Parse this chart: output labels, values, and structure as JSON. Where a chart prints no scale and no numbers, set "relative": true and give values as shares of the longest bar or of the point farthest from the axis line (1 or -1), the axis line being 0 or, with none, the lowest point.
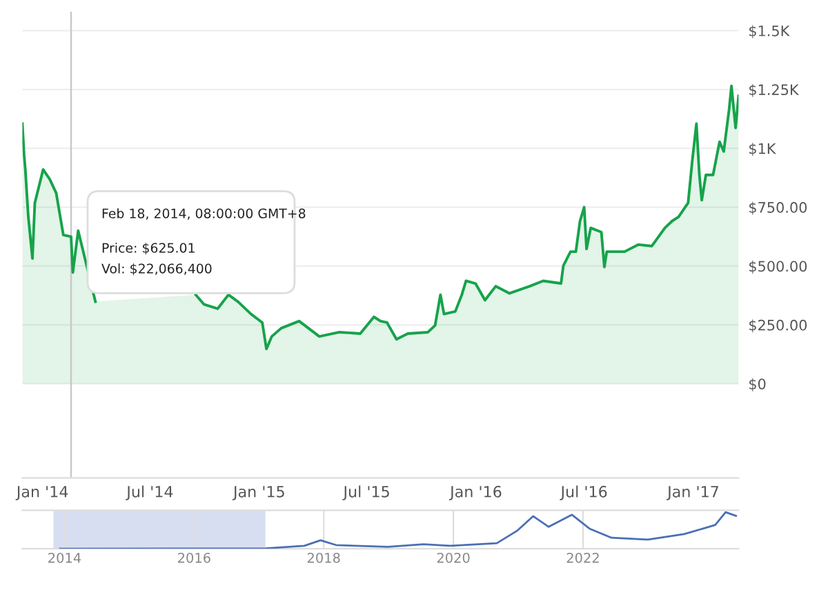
{
  "chart_data": [
    {
      "type": "area",
      "x": [
        "2013-11-28",
        "2013-12-01",
        "2013-12-03",
        "2013-12-08",
        "2013-12-15",
        "2013-12-19",
        "2014-01-02",
        "2014-01-13",
        "2014-01-24",
        "2014-02-05",
        "2014-02-18",
        "2014-02-21",
        "2014-03-02",
        "2014-03-31",
        "2014-04-15",
        "2014-09-16",
        "2014-09-30",
        "2014-10-23",
        "2014-11-10",
        "2014-11-26",
        "2014-12-18",
        "2015-01-06",
        "2015-01-13",
        "2015-01-22",
        "2015-02-07",
        "2015-03-09",
        "2015-04-12",
        "2015-05-16",
        "2015-06-20",
        "2015-07-13",
        "2015-07-24",
        "2015-08-04",
        "2015-08-20",
        "2015-09-08",
        "2015-10-12",
        "2015-10-24",
        "2015-11-02",
        "2015-11-08",
        "2015-11-27",
        "2015-12-08",
        "2015-12-15",
        "2015-12-31",
        "2016-01-16",
        "2016-02-03",
        "2016-02-26",
        "2016-03-31",
        "2016-04-23",
        "2016-05-23",
        "2016-05-27",
        "2016-06-08",
        "2016-06-17",
        "2016-06-24",
        "2016-07-01",
        "2016-07-05",
        "2016-07-12",
        "2016-07-24",
        "2016-07-30",
        "2016-08-04",
        "2016-08-08",
        "2016-09-07",
        "2016-09-30",
        "2016-10-23",
        "2016-11-14",
        "2016-11-26",
        "2016-12-07",
        "2016-12-23",
        "2016-12-30",
        "2017-01-06",
        "2017-01-11",
        "2017-01-15",
        "2017-01-22",
        "2017-02-03",
        "2017-02-14",
        "2017-02-21",
        "2017-03-02",
        "2017-03-06",
        "2017-03-13",
        "2017-03-18"
      ],
      "series": [
        {
          "color": "#16a34a",
          "values": [
            1105,
            970,
            910,
            710,
            532,
            768,
            910,
            869,
            810,
            632,
            625.01,
            473,
            650,
            349,
            null,
            378,
            337,
            319,
            378,
            349,
            296,
            260,
            148,
            201,
            236,
            266,
            201,
            219,
            213,
            284,
            266,
            260,
            189,
            213,
            219,
            248,
            378,
            296,
            307,
            378,
            437,
            426,
            355,
            414,
            384,
            414,
            437,
            426,
            502,
            561,
            561,
            691,
            750,
            573,
            662,
            650,
            644,
            496,
            561,
            561,
            591,
            585,
            662,
            691,
            709,
            768,
            946,
            1105,
            887,
            780,
            887,
            887,
            1028,
            987,
            1164,
            1265,
            1087,
            1223
          ]
        }
      ],
      "xlim": [
        "2013-11-28",
        "2017-03-18"
      ],
      "xticks": [
        {
          "value": "2014-01-01",
          "label": "Jan '14"
        },
        {
          "value": "2014-07-01",
          "label": "Jul '14"
        },
        {
          "value": "2015-01-01",
          "label": "Jan '15"
        },
        {
          "value": "2015-07-01",
          "label": "Jul '15"
        },
        {
          "value": "2016-01-01",
          "label": "Jan '16"
        },
        {
          "value": "2016-07-01",
          "label": "Jul '16"
        },
        {
          "value": "2017-01-01",
          "label": "Jan '17"
        }
      ],
      "ylim": [
        -400,
        1580
      ],
      "yticks": [
        {
          "value": 0,
          "label": "$0"
        },
        {
          "value": 250,
          "label": "$250.00"
        },
        {
          "value": 500,
          "label": "$500.00"
        },
        {
          "value": 750,
          "label": "$750.00"
        },
        {
          "value": 1000,
          "label": "$1K"
        },
        {
          "value": 1250,
          "label": "$1.25K"
        },
        {
          "value": 1500,
          "label": "$1.5K"
        }
      ],
      "grid": "y",
      "ref_lines": [
        {
          "axis": "x",
          "value": "2014-02-18",
          "color": "#c8c8c8"
        }
      ],
      "annotations": [
        "Feb 18, 2014, 08:00:00 GMT+8",
        "Price: $625.01",
        "Vol: $22,066,400"
      ]
    },
    {
      "type": "line",
      "relative": true,
      "tick_labels": "x",
      "x": [
        2013.93,
        2017.1,
        2017.7,
        2017.95,
        2018.19,
        2018.99,
        2019.54,
        2019.95,
        2020.67,
        2020.99,
        2021.23,
        2021.47,
        2021.83,
        2022.1,
        2022.44,
        2023.0,
        2023.56,
        2024.04,
        2024.2,
        2024.36
      ],
      "series": [
        {
          "color": "#4a6fb5",
          "values": [
            0,
            0.01,
            0.08,
            0.23,
            0.1,
            0.05,
            0.12,
            0.08,
            0.15,
            0.5,
            0.89,
            0.6,
            0.93,
            0.55,
            0.3,
            0.25,
            0.4,
            0.65,
            1.0,
            0.9
          ]
        }
      ],
      "xlim": [
        2013.35,
        2024.4
      ],
      "xticks": [
        2014,
        2016,
        2018,
        2020,
        2022
      ],
      "grid": "x",
      "bands": [
        {
          "axis": "x",
          "from": 2013.83,
          "to": 2017.1,
          "color": "#d4daf0"
        }
      ]
    }
  ]
}
